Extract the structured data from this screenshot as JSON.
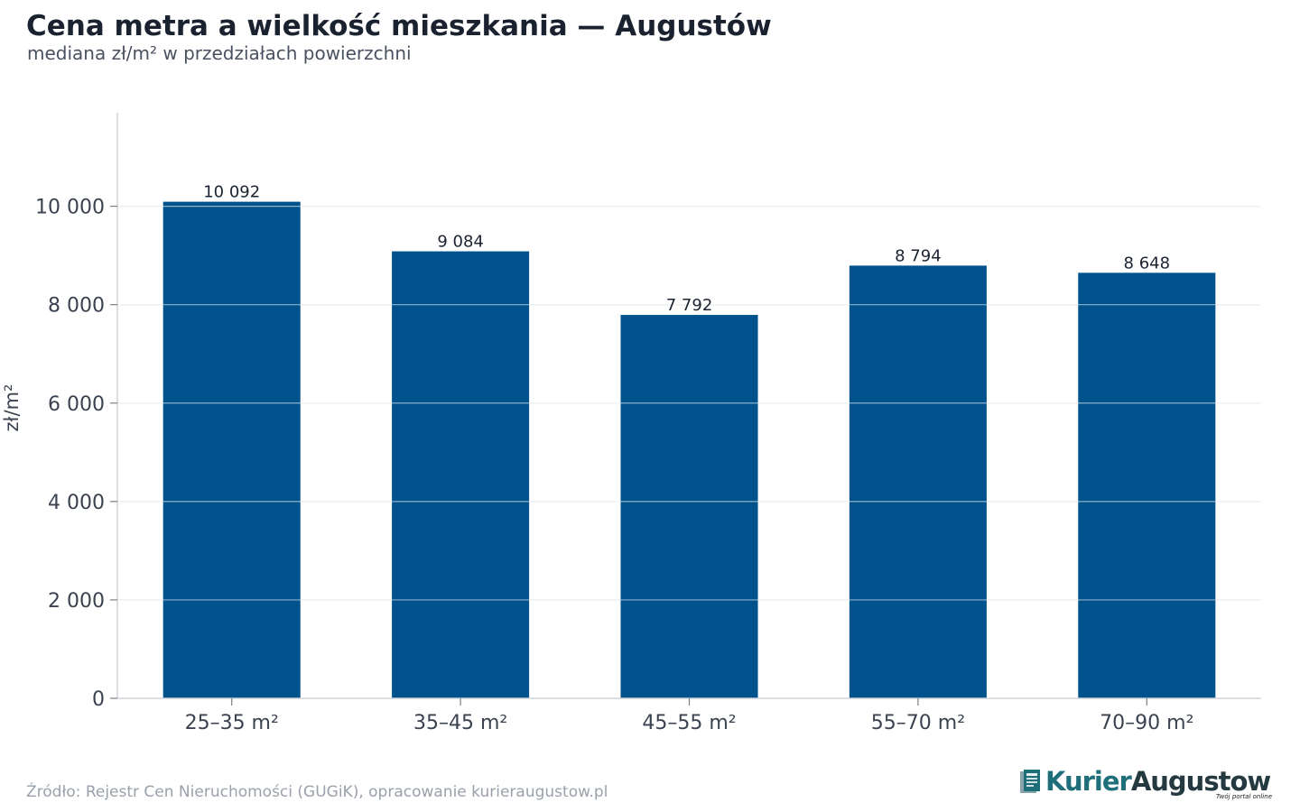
{
  "header": {
    "title": "Cena metra a wielkość mieszkania — Augustów",
    "subtitle": "mediana zł/m² w przedziałach powierzchni"
  },
  "footer": {
    "source": "Źródło: Rejestr Cen Nieruchomości (GUGiK), opracowanie kurieraugustow.pl"
  },
  "logo": {
    "name_part1": "Kurier",
    "name_part2": "Augustow",
    "tagline": "Twój portal online"
  },
  "colors": {
    "bar": "#00528c",
    "grid": "#e3e5e8",
    "axis": "#d0d3d8",
    "text": "#2e3440"
  },
  "chart_data": {
    "type": "bar",
    "title": "Cena metra a wielkość mieszkania — Augustów",
    "subtitle": "mediana zł/m² w przedziałach powierzchni",
    "xlabel": "",
    "ylabel": "zł/m²",
    "categories": [
      "25–35 m²",
      "35–45 m²",
      "45–55 m²",
      "55–70 m²",
      "70–90 m²"
    ],
    "values": [
      10092,
      9084,
      7792,
      8794,
      8648
    ],
    "value_labels": [
      "10 092",
      "9 084",
      "7 792",
      "8 794",
      "8 648"
    ],
    "ylim": [
      0,
      11900
    ],
    "yticks": [
      0,
      2000,
      4000,
      6000,
      8000,
      10000
    ],
    "ytick_labels": [
      "0",
      "2 000",
      "4 000",
      "6 000",
      "8 000",
      "10 000"
    ],
    "grid": true,
    "legend": "none"
  }
}
